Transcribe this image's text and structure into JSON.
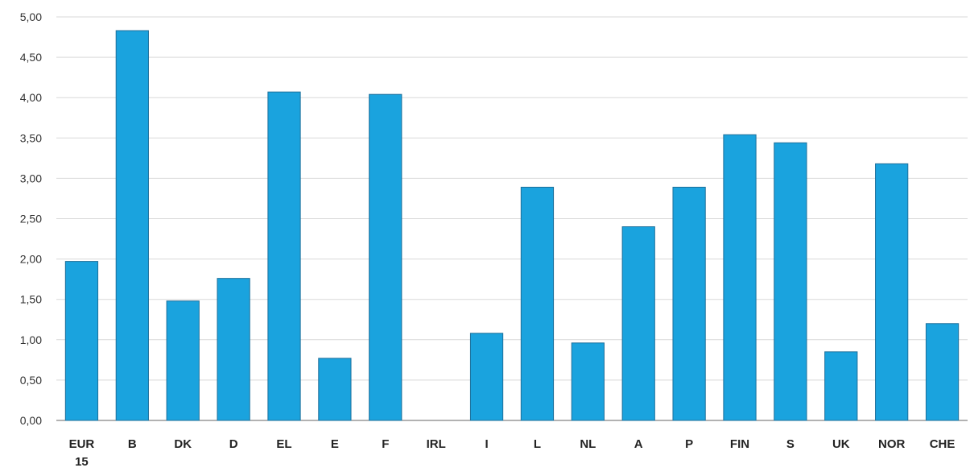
{
  "chart_data": {
    "type": "bar",
    "title": "",
    "xlabel": "",
    "ylabel": "",
    "categories": [
      "EUR 15",
      "B",
      "DK",
      "D",
      "EL",
      "E",
      "F",
      "IRL",
      "I",
      "L",
      "NL",
      "A",
      "P",
      "FIN",
      "S",
      "UK",
      "NOR",
      "CHE"
    ],
    "values": [
      1.97,
      4.83,
      1.48,
      1.76,
      4.07,
      0.77,
      4.04,
      0.0,
      1.08,
      2.89,
      0.96,
      2.4,
      2.89,
      3.54,
      3.44,
      0.85,
      3.18,
      1.2
    ],
    "ylim": [
      0,
      5
    ],
    "y_ticks": [
      "0,00",
      "0,50",
      "1,00",
      "1,50",
      "2,00",
      "2,50",
      "3,00",
      "3,50",
      "4,00",
      "4,50",
      "5,00"
    ],
    "grid": true,
    "legend": "none",
    "bar_color": "#1aa3de",
    "bar_edge_color": "#1d6f9a"
  }
}
